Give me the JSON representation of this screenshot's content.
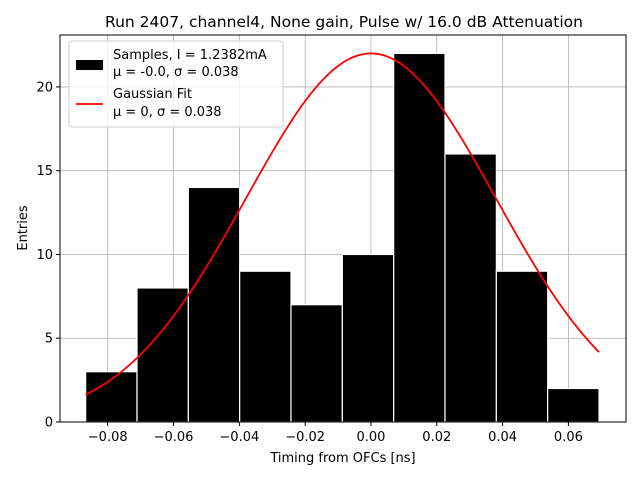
{
  "chart_data": {
    "type": "bar",
    "title": "Run 2407, channel4, None gain, Pulse w/ 16.0 dB Attenuation",
    "xlabel": "Timing from OFCs [ns]",
    "ylabel": "Entries",
    "xlim": [
      -0.0945,
      0.0775
    ],
    "ylim": [
      0,
      23.1
    ],
    "grid": true,
    "x_ticks": [
      -0.08,
      -0.06,
      -0.04,
      -0.02,
      0.0,
      0.02,
      0.04,
      0.06
    ],
    "x_tick_labels": [
      "−0.08",
      "−0.06",
      "−0.04",
      "−0.02",
      "0.00",
      "0.02",
      "0.04",
      "0.06"
    ],
    "y_ticks": [
      0,
      5,
      10,
      15,
      20
    ],
    "y_tick_labels": [
      "0",
      "5",
      "10",
      "15",
      "20"
    ],
    "legend_position": "top-left",
    "histogram": {
      "name_line1": "Samples, I = 1.2382mA",
      "name_line2": "μ = -0.0, σ = 0.038",
      "color": "#000000",
      "edge_color": "#ffffff",
      "bin_edges": [
        -0.0867,
        -0.0711,
        -0.0555,
        -0.0399,
        -0.0243,
        -0.0087,
        0.0069,
        0.0225,
        0.0381,
        0.0537,
        0.0693
      ],
      "counts": [
        3,
        8,
        14,
        9,
        7,
        10,
        22,
        16,
        9,
        2
      ]
    },
    "fit": {
      "name_line1": "Gaussian Fit",
      "name_line2": "μ = 0, σ = 0.038",
      "color": "#ff0000",
      "mu": 0,
      "sigma": 0.038,
      "amplitude": 22,
      "x_range": [
        -0.0867,
        0.0693
      ]
    }
  }
}
